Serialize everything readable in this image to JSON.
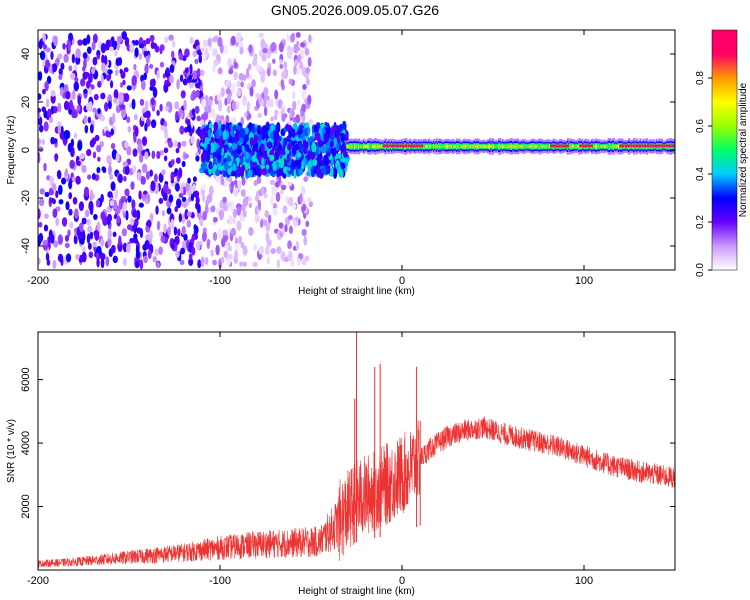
{
  "title": "GN05.2026.009.05.07.G26",
  "chart_data": [
    {
      "type": "heatmap",
      "xlabel": "Height of straight line (km)",
      "ylabel": "Frequency (Hz)",
      "xlim": [
        -200,
        150
      ],
      "ylim": [
        -50,
        50
      ],
      "xticks": [
        -200,
        -100,
        0,
        100
      ],
      "yticks": [
        -40,
        -20,
        0,
        20,
        40
      ],
      "colorbar": {
        "label": "Normalized spectral amplitude",
        "range": [
          0,
          1
        ],
        "ticks": [
          0.0,
          0.2,
          0.4,
          0.6,
          0.8
        ],
        "colors": [
          "#ffffff",
          "#cc99ff",
          "#6600ff",
          "#0000ff",
          "#00ccff",
          "#00ff66",
          "#99ff00",
          "#ffff00",
          "#ff9900",
          "#ff0066",
          "#ff0066"
        ]
      },
      "regions": [
        {
          "x": [
            -200,
            -110
          ],
          "freq_spread": 48,
          "amplitude": [
            0.05,
            0.3
          ],
          "note_free": true
        },
        {
          "x": [
            -110,
            -50
          ],
          "freq_spread": 48,
          "amplitude": [
            0.02,
            0.15
          ]
        },
        {
          "x": [
            -110,
            -30
          ],
          "freq_spread": 10,
          "amplitude": [
            0.2,
            0.45
          ]
        },
        {
          "x": [
            -30,
            150
          ],
          "freq_center": 1.5,
          "freq_width": 3,
          "amplitude": [
            0.5,
            0.95
          ]
        }
      ]
    },
    {
      "type": "line",
      "xlabel": "Height of straight line (km)",
      "ylabel": "SNR (10 * v/v)",
      "xlim": [
        -200,
        150
      ],
      "ylim": [
        0,
        7500
      ],
      "xticks": [
        -200,
        -100,
        0,
        100
      ],
      "yticks": [
        2000,
        4000,
        6000
      ],
      "color": "#ee3333",
      "envelope": {
        "x": [
          -200,
          -180,
          -160,
          -140,
          -120,
          -100,
          -80,
          -60,
          -45,
          -35,
          -25,
          -15,
          -5,
          5,
          15,
          25,
          35,
          45,
          55,
          70,
          85,
          100,
          115,
          130,
          150
        ],
        "y": [
          200,
          250,
          350,
          450,
          550,
          700,
          800,
          850,
          900,
          1500,
          2200,
          2500,
          2800,
          3200,
          3800,
          4200,
          4400,
          4500,
          4300,
          4100,
          3900,
          3600,
          3300,
          3100,
          2900
        ]
      },
      "spikes": [
        {
          "x": -25,
          "y": 7500
        },
        {
          "x": -26,
          "y": 5400
        },
        {
          "x": -15,
          "y": 6400
        },
        {
          "x": -12,
          "y": 6500
        },
        {
          "x": 8,
          "y": 6400
        },
        {
          "x": 10,
          "y": 4700
        }
      ]
    }
  ]
}
